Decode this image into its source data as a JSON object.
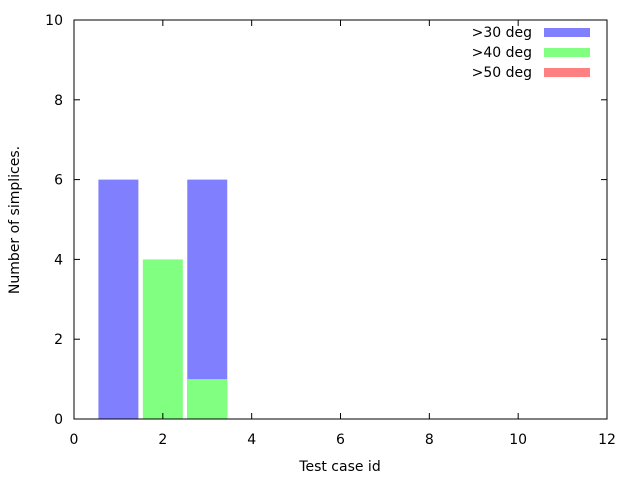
{
  "chart_data": {
    "type": "bar",
    "title": "",
    "xlabel": "Test case id",
    "ylabel": "Number of simplices.",
    "xlim": [
      0,
      12
    ],
    "ylim": [
      0,
      10
    ],
    "xticks": [
      0,
      2,
      4,
      6,
      8,
      10,
      12
    ],
    "yticks": [
      0,
      2,
      4,
      6,
      8,
      10
    ],
    "grid": false,
    "legend_position": "top-right",
    "bar_width": 0.9,
    "series": [
      {
        "name": ">30 deg",
        "color": "#8080ff",
        "bars": [
          {
            "x": 1,
            "value": 6
          },
          {
            "x": 3,
            "value": 6
          }
        ]
      },
      {
        "name": ">40 deg",
        "color": "#80ff80",
        "bars": [
          {
            "x": 2,
            "value": 4
          },
          {
            "x": 3,
            "value": 1
          }
        ]
      },
      {
        "name": ">50 deg",
        "color": "#ff8080",
        "bars": []
      }
    ]
  }
}
